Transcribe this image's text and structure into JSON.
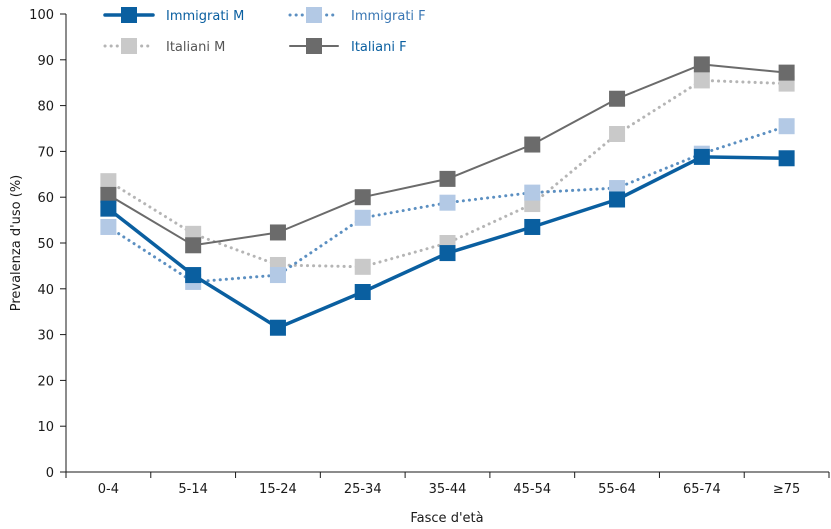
{
  "chart_data": {
    "type": "line",
    "title": "",
    "xlabel": "Fasce d'età",
    "ylabel": "Prevalenza d'uso (%)",
    "ylim": [
      0,
      100
    ],
    "yticks": [
      0,
      10,
      20,
      30,
      40,
      50,
      60,
      70,
      80,
      90,
      100
    ],
    "grid": false,
    "legend_position": "top-left",
    "categories": [
      "0-4",
      "5-14",
      "15-24",
      "25-34",
      "35-44",
      "45-54",
      "55-64",
      "65-74",
      "≥75"
    ],
    "series": [
      {
        "name": "Immigrati M",
        "values": [
          57.5,
          43.0,
          31.5,
          39.3,
          47.8,
          53.5,
          59.5,
          68.8,
          68.5
        ],
        "color": "#0a5fa0",
        "line_style": "solid-thick",
        "marker_color": "#0a5fa0",
        "legend_color": "#0a5fa0"
      },
      {
        "name": "Immigrati F",
        "values": [
          53.5,
          41.5,
          43.0,
          55.5,
          58.8,
          61.0,
          62.0,
          69.5,
          75.5
        ],
        "color": "#5b8fc1",
        "line_style": "dotted",
        "marker_color": "#b3c9e5",
        "legend_color": "#3a77b4"
      },
      {
        "name": "Italiani M",
        "values": [
          63.5,
          52.0,
          45.2,
          44.8,
          50.0,
          58.5,
          73.8,
          85.5,
          84.8
        ],
        "color": "#b5b5b5",
        "line_style": "dotted",
        "marker_color": "#c9c9c9",
        "legend_color": "#555555"
      },
      {
        "name": "Italiani F",
        "values": [
          60.5,
          49.5,
          52.3,
          60.0,
          64.0,
          71.5,
          81.5,
          89.0,
          87.2
        ],
        "color": "#6b6b6b",
        "line_style": "solid",
        "marker_color": "#6b6b6b",
        "legend_color": "#0a5fa0"
      }
    ]
  }
}
